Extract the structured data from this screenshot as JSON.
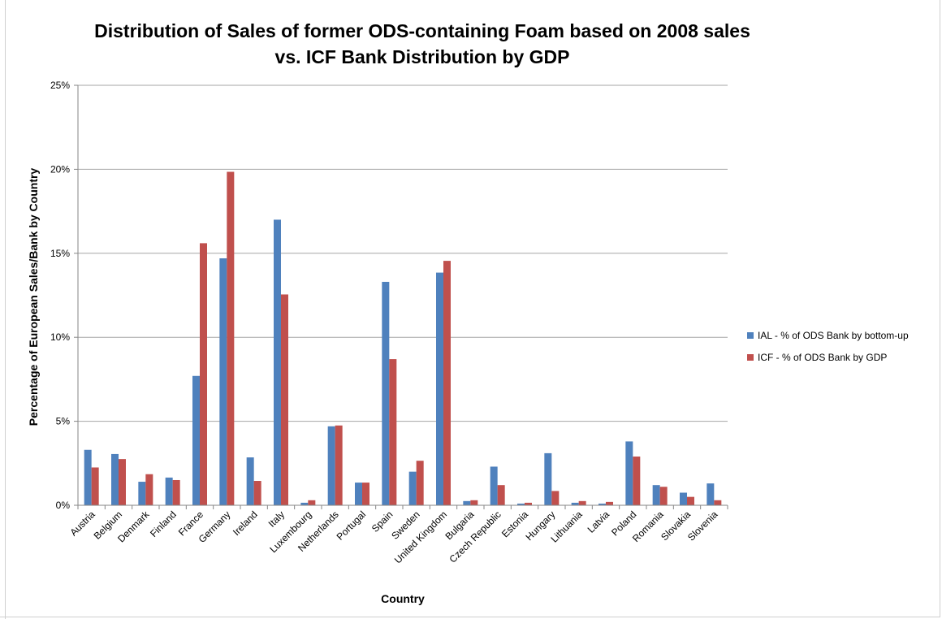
{
  "chart_data": {
    "type": "bar",
    "title_line1": "Distribution of Sales of former ODS-containing Foam based on 2008 sales",
    "title_line2": "vs. ICF Bank Distribution by GDP",
    "xlabel": "Country",
    "ylabel": "Percentage of European Sales/Bank by Country",
    "ylim": [
      0,
      25
    ],
    "yticks": [
      "0%",
      "5%",
      "10%",
      "15%",
      "20%",
      "25%"
    ],
    "grid": true,
    "legend_position": "right",
    "categories": [
      "Austria",
      "Belgium",
      "Denmark",
      "Finland",
      "France",
      "Germany",
      "Ireland",
      "Italy",
      "Luxembourg",
      "Netherlands",
      "Portugal",
      "Spain",
      "Sweden",
      "United Kingdom",
      "Bulgaria",
      "Czech Republic",
      "Estonia",
      "Hungary",
      "Lithuania",
      "Latvia",
      "Poland",
      "Romania",
      "Slovakia",
      "Slovenia"
    ],
    "series": [
      {
        "name": "IAL - % of ODS Bank by bottom-up",
        "color": "#4F81BD",
        "values": [
          3.3,
          3.05,
          1.4,
          1.65,
          7.7,
          14.7,
          2.85,
          17.0,
          0.15,
          4.7,
          1.35,
          13.3,
          2.0,
          13.85,
          0.25,
          2.3,
          0.1,
          3.1,
          0.15,
          0.1,
          3.8,
          1.2,
          0.75,
          1.3
        ]
      },
      {
        "name": "ICF - % of ODS Bank by GDP",
        "color": "#C0504D",
        "values": [
          2.25,
          2.75,
          1.85,
          1.5,
          15.6,
          19.85,
          1.45,
          12.55,
          0.3,
          4.75,
          1.35,
          8.7,
          2.65,
          14.55,
          0.3,
          1.2,
          0.15,
          0.85,
          0.25,
          0.2,
          2.9,
          1.1,
          0.5,
          0.3
        ]
      }
    ]
  }
}
